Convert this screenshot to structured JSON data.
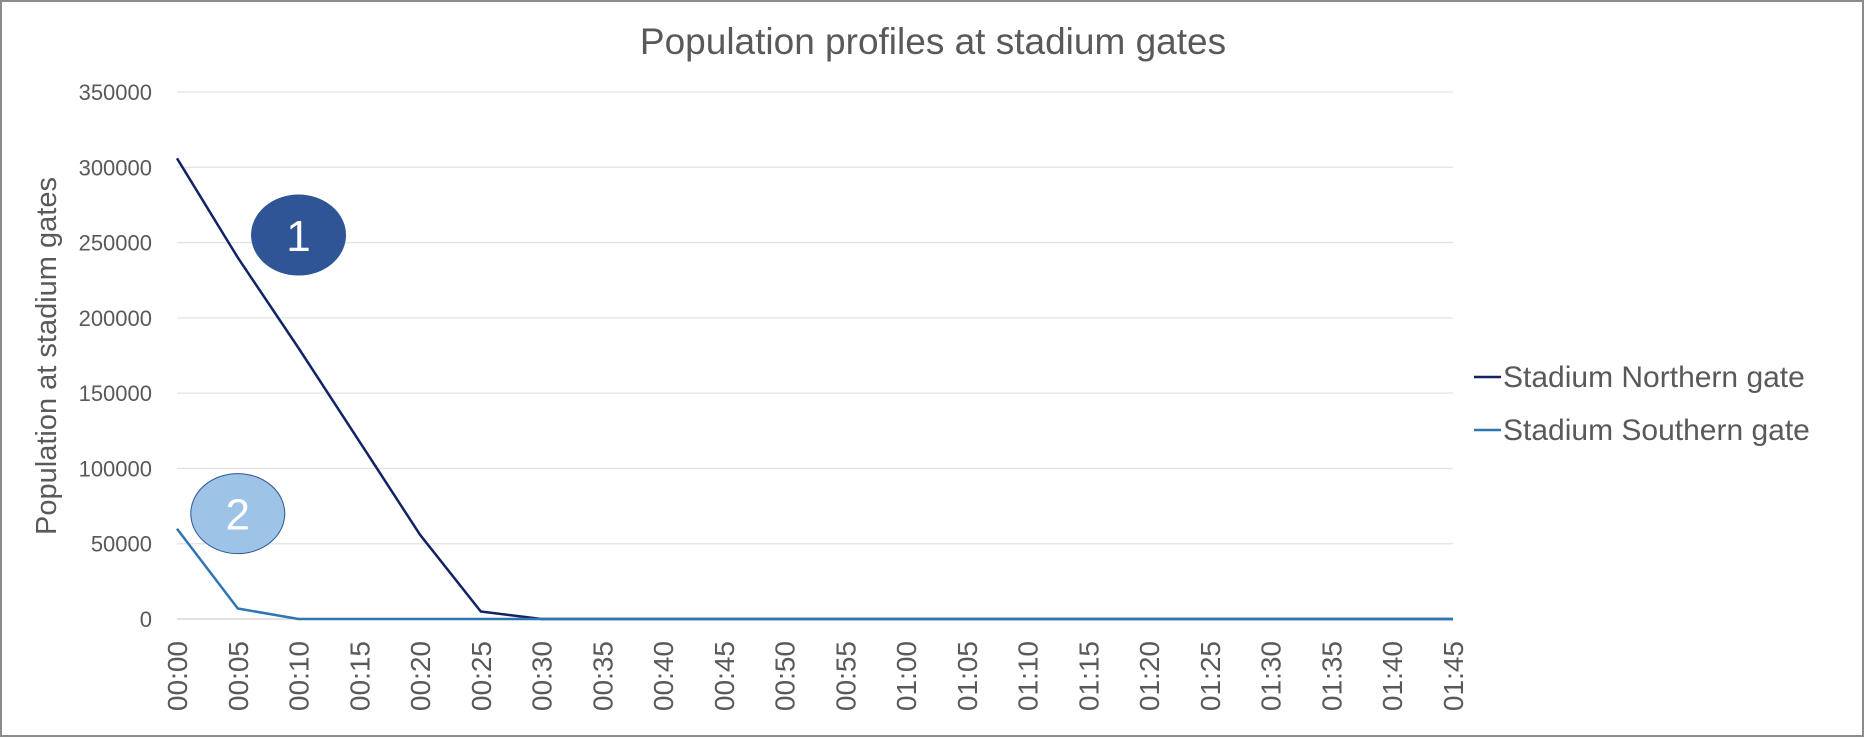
{
  "chart_data": {
    "type": "line",
    "title": "Population profiles at stadium gates",
    "xlabel": "",
    "ylabel": "Population at stadium gates",
    "ylim": [
      0,
      350000
    ],
    "yticks": [
      "0",
      "50000",
      "100000",
      "150000",
      "200000",
      "250000",
      "300000",
      "350000"
    ],
    "x": [
      "00:00",
      "00:05",
      "00:10",
      "00:15",
      "00:20",
      "00:25",
      "00:30",
      "00:35",
      "00:40",
      "00:45",
      "00:50",
      "00:55",
      "01:00",
      "01:05",
      "01:10",
      "01:15",
      "01:20",
      "01:25",
      "01:30",
      "01:35",
      "01:40",
      "01:45"
    ],
    "grid": true,
    "legend_position": "right",
    "series": [
      {
        "name": "Stadium Northern gate",
        "color": "#0f2366",
        "values": [
          306000,
          240000,
          180000,
          118000,
          56000,
          5000,
          0,
          0,
          0,
          0,
          0,
          0,
          0,
          0,
          0,
          0,
          0,
          0,
          0,
          0,
          0,
          0
        ]
      },
      {
        "name": "Stadium Southern gate",
        "color": "#2e75b6",
        "values": [
          60000,
          7000,
          0,
          0,
          0,
          0,
          0,
          0,
          0,
          0,
          0,
          0,
          0,
          0,
          0,
          0,
          0,
          0,
          0,
          0,
          0,
          0
        ]
      }
    ],
    "annotations": [
      {
        "label": "1",
        "x": "00:10",
        "y": 255000,
        "fill": "#2f5597",
        "text_color": "#ffffff"
      },
      {
        "label": "2",
        "x": "00:05",
        "y": 70000,
        "fill": "#9dc3e6",
        "text_color": "#ffffff"
      }
    ]
  }
}
